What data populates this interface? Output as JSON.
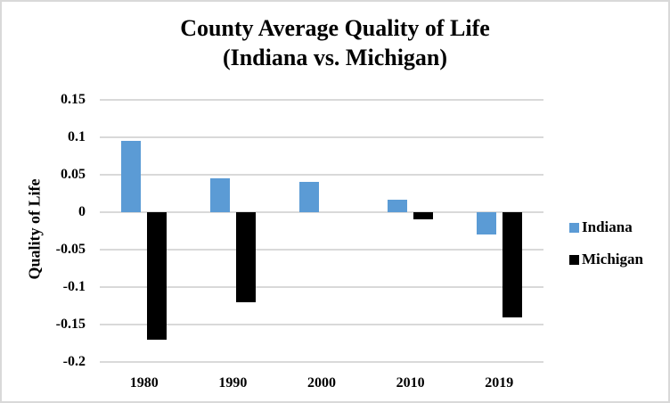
{
  "chart": {
    "title_line1": "County Average Quality of Life",
    "title_line2": "(Indiana vs. Michigan)"
  },
  "chart_data": {
    "type": "bar",
    "title": "County Average Quality of Life (Indiana vs. Michigan)",
    "xlabel": "",
    "ylabel": "Quality of Life",
    "categories": [
      "1980",
      "1990",
      "2000",
      "2010",
      "2019"
    ],
    "series": [
      {
        "name": "Indiana",
        "color": "#5B9BD5",
        "values": [
          0.095,
          0.045,
          0.04,
          0.017,
          -0.03
        ]
      },
      {
        "name": "Michigan",
        "color": "#000000",
        "values": [
          -0.17,
          -0.12,
          0,
          -0.01,
          -0.14
        ]
      }
    ],
    "ylim": [
      -0.2,
      0.15
    ],
    "ytick_labels": [
      "0.15",
      "0.1",
      "0.05",
      "0",
      "-0.05",
      "-0.1",
      "-0.15",
      "-0.2"
    ],
    "grid": true,
    "legend_position": "right"
  }
}
